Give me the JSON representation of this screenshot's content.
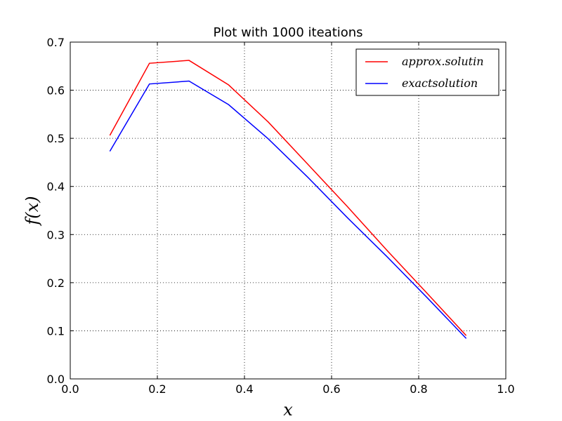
{
  "chart_data": {
    "type": "line",
    "title": "Plot with 1000 iteations",
    "xlabel": "x",
    "ylabel": "f(x)",
    "xlim": [
      0.0,
      1.0
    ],
    "ylim": [
      0.0,
      0.7
    ],
    "xticks": [
      "0.0",
      "0.2",
      "0.4",
      "0.6",
      "0.8",
      "1.0"
    ],
    "yticks": [
      "0.0",
      "0.1",
      "0.2",
      "0.3",
      "0.4",
      "0.5",
      "0.6",
      "0.7"
    ],
    "grid": true,
    "legend_position": "top-right",
    "series": [
      {
        "name": "approx.solutin",
        "color": "#ff0000",
        "x": [
          0.0909,
          0.1818,
          0.2727,
          0.3636,
          0.4545,
          0.5455,
          0.6364,
          0.7273,
          0.8182,
          0.9091
        ],
        "y": [
          0.506,
          0.656,
          0.662,
          0.611,
          0.534,
          0.446,
          0.358,
          0.267,
          0.179,
          0.09
        ]
      },
      {
        "name": "exactsolution",
        "color": "#0000ff",
        "x": [
          0.0909,
          0.1818,
          0.2727,
          0.3636,
          0.4545,
          0.5455,
          0.6364,
          0.7273,
          0.8182,
          0.9091
        ],
        "y": [
          0.473,
          0.613,
          0.619,
          0.57,
          0.499,
          0.419,
          0.335,
          0.254,
          0.17,
          0.084
        ]
      }
    ]
  }
}
